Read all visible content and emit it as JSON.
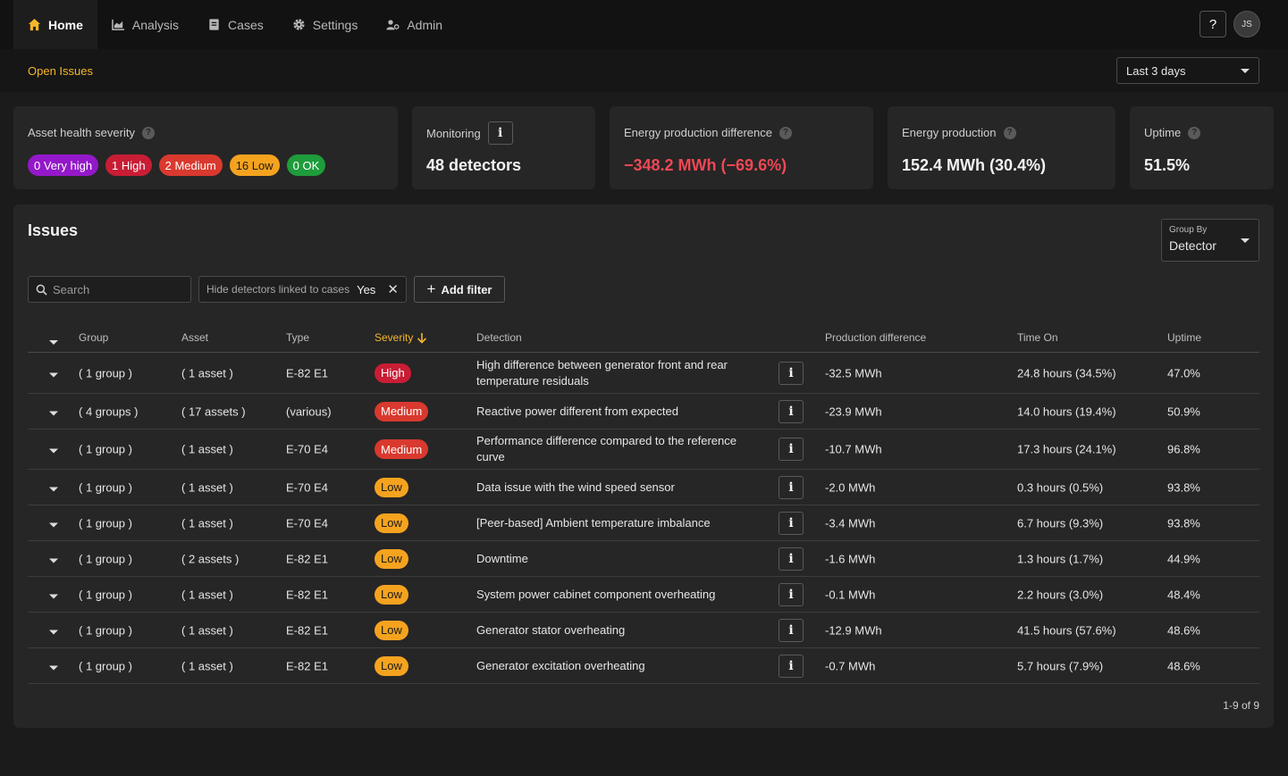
{
  "nav": {
    "tabs": [
      {
        "label": "Home",
        "icon": "home-icon"
      },
      {
        "label": "Analysis",
        "icon": "chart-icon"
      },
      {
        "label": "Cases",
        "icon": "document-icon"
      },
      {
        "label": "Settings",
        "icon": "gear-icon"
      },
      {
        "label": "Admin",
        "icon": "user-admin-icon"
      }
    ],
    "help_label": "?",
    "avatar_initials": "JS"
  },
  "subheader": {
    "title": "Open Issues",
    "range": "Last 3 days"
  },
  "kpis": {
    "health": {
      "title": "Asset health severity",
      "pills": [
        "0 Very high",
        "1 High",
        "2 Medium",
        "16 Low",
        "0 OK"
      ]
    },
    "monitoring": {
      "title": "Monitoring",
      "info": "i",
      "value": "48 detectors"
    },
    "energy_diff": {
      "title": "Energy production difference",
      "value": "−348.2 MWh (−69.6%)"
    },
    "energy_prod": {
      "title": "Energy production",
      "value": "152.4 MWh (30.4%)"
    },
    "uptime": {
      "title": "Uptime",
      "value": "51.5%"
    }
  },
  "issues": {
    "title": "Issues",
    "group_by_label": "Group By",
    "group_by_value": "Detector",
    "search_placeholder": "Search",
    "filter": {
      "label": "Hide detectors linked to cases",
      "value": "Yes"
    },
    "add_filter": "Add filter",
    "columns": {
      "group": "Group",
      "asset": "Asset",
      "type": "Type",
      "severity": "Severity",
      "detection": "Detection",
      "prod_diff": "Production difference",
      "time_on": "Time On",
      "uptime": "Uptime"
    },
    "rows": [
      {
        "group": "( 1 group )",
        "asset": "( 1 asset )",
        "type": "E-82 E1",
        "severity": "High",
        "detection": "High difference between generator front and rear temperature residuals",
        "prod_diff": "-32.5 MWh",
        "time_on": "24.8 hours (34.5%)",
        "uptime": "47.0%"
      },
      {
        "group": "( 4 groups )",
        "asset": "( 17 assets )",
        "type": "(various)",
        "severity": "Medium",
        "detection": "Reactive power different from expected",
        "prod_diff": "-23.9 MWh",
        "time_on": "14.0 hours (19.4%)",
        "uptime": "50.9%"
      },
      {
        "group": "( 1 group )",
        "asset": "( 1 asset )",
        "type": "E-70 E4",
        "severity": "Medium",
        "detection": "Performance difference compared to the reference curve",
        "prod_diff": "-10.7 MWh",
        "time_on": "17.3 hours (24.1%)",
        "uptime": "96.8%"
      },
      {
        "group": "( 1 group )",
        "asset": "( 1 asset )",
        "type": "E-70 E4",
        "severity": "Low",
        "detection": "Data issue with the wind speed sensor",
        "prod_diff": "-2.0 MWh",
        "time_on": "0.3 hours (0.5%)",
        "uptime": "93.8%"
      },
      {
        "group": "( 1 group )",
        "asset": "( 1 asset )",
        "type": "E-70 E4",
        "severity": "Low",
        "detection": "[Peer-based] Ambient temperature imbalance",
        "prod_diff": "-3.4 MWh",
        "time_on": "6.7 hours (9.3%)",
        "uptime": "93.8%"
      },
      {
        "group": "( 1 group )",
        "asset": "( 2 assets )",
        "type": "E-82 E1",
        "severity": "Low",
        "detection": "Downtime",
        "prod_diff": "-1.6 MWh",
        "time_on": "1.3 hours (1.7%)",
        "uptime": "44.9%"
      },
      {
        "group": "( 1 group )",
        "asset": "( 1 asset )",
        "type": "E-82 E1",
        "severity": "Low",
        "detection": "System power cabinet component overheating",
        "prod_diff": "-0.1 MWh",
        "time_on": "2.2 hours (3.0%)",
        "uptime": "48.4%"
      },
      {
        "group": "( 1 group )",
        "asset": "( 1 asset )",
        "type": "E-82 E1",
        "severity": "Low",
        "detection": "Generator stator overheating",
        "prod_diff": "-12.9 MWh",
        "time_on": "41.5 hours (57.6%)",
        "uptime": "48.6%"
      },
      {
        "group": "( 1 group )",
        "asset": "( 1 asset )",
        "type": "E-82 E1",
        "severity": "Low",
        "detection": "Generator excitation overheating",
        "prod_diff": "-0.7 MWh",
        "time_on": "5.7 hours (7.9%)",
        "uptime": "48.6%"
      }
    ],
    "pagination": "1-9 of 9"
  },
  "colors": {
    "accent": "#f5b629",
    "very_high": "#9418c9",
    "high": "#c81d35",
    "medium": "#d9392e",
    "low": "#f5a31f",
    "ok": "#1e9c3b",
    "negative": "#f04755"
  }
}
